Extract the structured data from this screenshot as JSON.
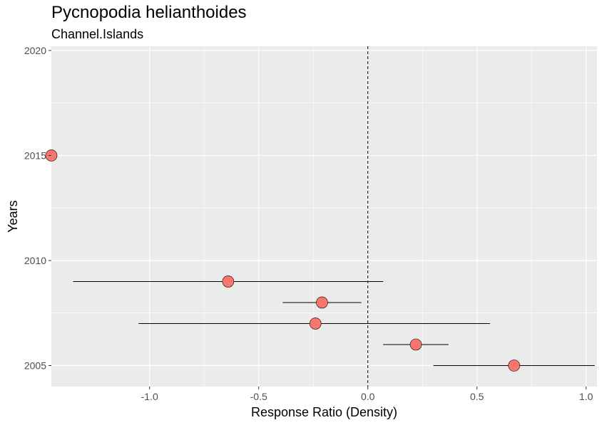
{
  "chart_data": {
    "type": "scatter",
    "title": "Pycnopodia helianthoides",
    "subtitle": "Channel.Islands",
    "xlabel": "Response Ratio (Density)",
    "ylabel": "Years",
    "xlim": [
      -1.45,
      1.05
    ],
    "ylim": [
      2004.0,
      2020.2
    ],
    "x_ticks": [
      -1.0,
      -0.5,
      0.0,
      0.5,
      1.0
    ],
    "x_tick_labels": [
      "-1.0",
      "-0.5",
      "0.0",
      "0.5",
      "1.0"
    ],
    "y_ticks": [
      2005,
      2010,
      2015,
      2020
    ],
    "y_tick_labels": [
      "2005",
      "2010",
      "2015",
      "2020"
    ],
    "reference_line_x": 0,
    "grid": true,
    "point_color": "#F8766D",
    "panel_background": "#EBEBEB",
    "points": [
      {
        "year": 2005,
        "x": 0.67,
        "lower": 0.3,
        "upper": 1.04
      },
      {
        "year": 2006,
        "x": 0.22,
        "lower": 0.07,
        "upper": 0.37
      },
      {
        "year": 2007,
        "x": -0.24,
        "lower": -1.05,
        "upper": 0.56
      },
      {
        "year": 2008,
        "x": -0.21,
        "lower": -0.39,
        "upper": -0.03
      },
      {
        "year": 2009,
        "x": -0.64,
        "lower": -1.35,
        "upper": 0.07
      },
      {
        "year": 2015,
        "x": -1.45,
        "lower": null,
        "upper": null
      }
    ]
  }
}
